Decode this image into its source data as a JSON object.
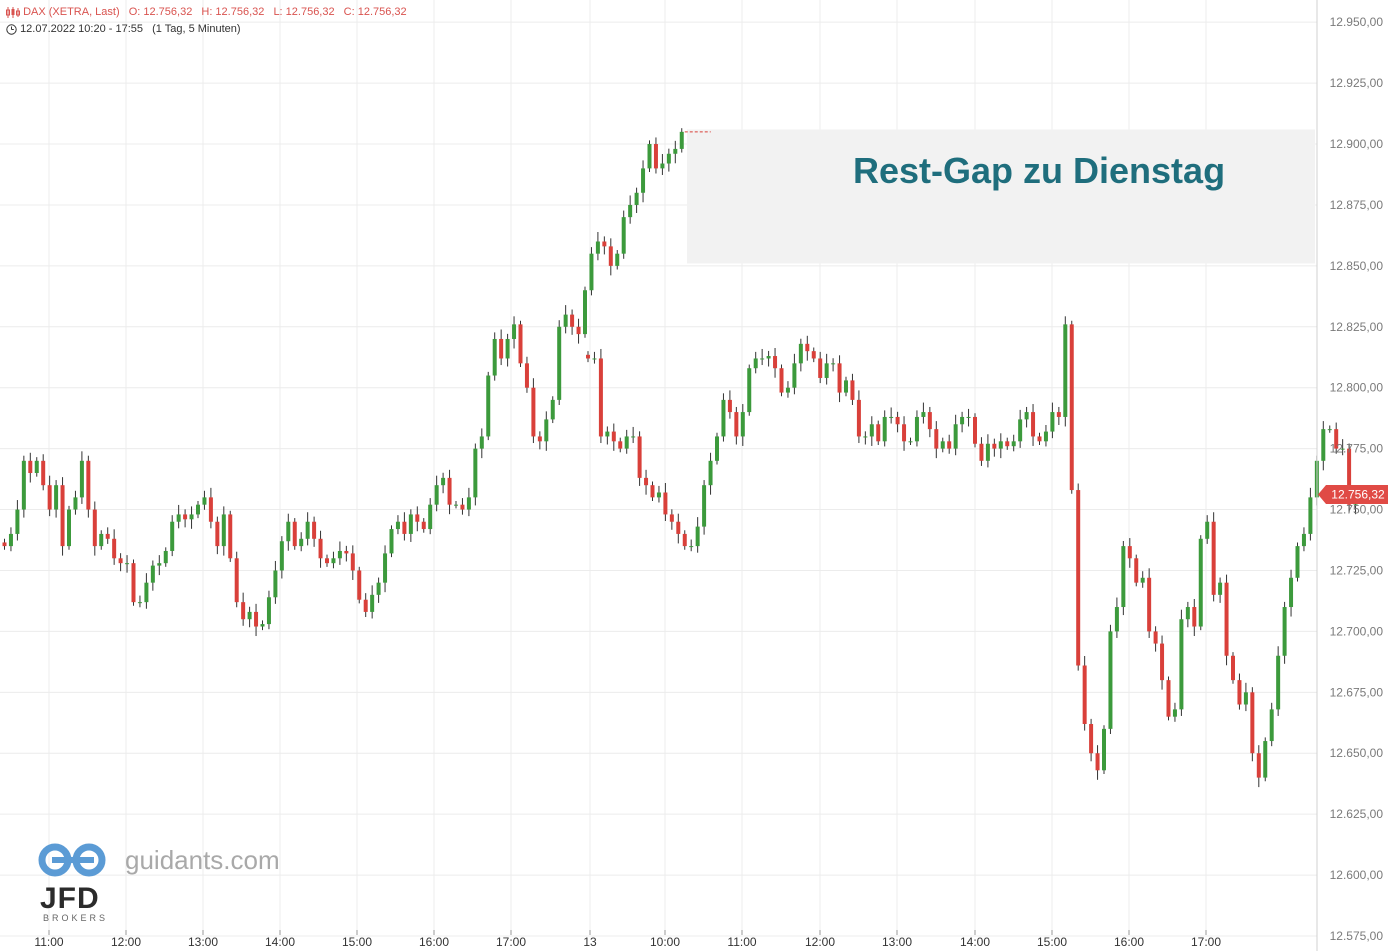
{
  "header": {
    "instrument": "DAX (XETRA, Last)",
    "open": "O: 12.756,32",
    "high": "H: 12.756,32",
    "low": "L: 12.756,32",
    "close": "C: 12.756,32",
    "range": "12.07.2022 10:20 - 17:55",
    "interval": "(1 Tag, 5 Minuten)"
  },
  "annotation": "Rest-Gap zu Dienstag",
  "watermark": {
    "site": "guidants.com",
    "broker": "JFD",
    "broker_sub": "BROKERS"
  },
  "last_price_label": "12.756,32",
  "colors": {
    "up": "#3c9a3c",
    "down": "#d9403a",
    "gap_zone": "#f2f2f2",
    "annotation": "#1f6e7d",
    "grid": "#ececec"
  },
  "chart_data": {
    "type": "candlestick",
    "ylim": [
      12575,
      12955
    ],
    "yticks": [
      {
        "v": 12950,
        "label": "12.950,00"
      },
      {
        "v": 12925,
        "label": "12.925,00"
      },
      {
        "v": 12900,
        "label": "12.900,00"
      },
      {
        "v": 12875,
        "label": "12.875,00"
      },
      {
        "v": 12850,
        "label": "12.850,00"
      },
      {
        "v": 12825,
        "label": "12.825,00"
      },
      {
        "v": 12800,
        "label": "12.800,00"
      },
      {
        "v": 12775,
        "label": "12.775,00"
      },
      {
        "v": 12750,
        "label": "12.750,00"
      },
      {
        "v": 12725,
        "label": "12.725,00"
      },
      {
        "v": 12700,
        "label": "12.700,00"
      },
      {
        "v": 12675,
        "label": "12.675,00"
      },
      {
        "v": 12650,
        "label": "12.650,00"
      },
      {
        "v": 12625,
        "label": "12.625,00"
      },
      {
        "v": 12600,
        "label": "12.600,00"
      },
      {
        "v": 12575,
        "label": "12.575,00"
      }
    ],
    "xticks": [
      "11:00",
      "12:00",
      "13:00",
      "14:00",
      "15:00",
      "16:00",
      "17:00",
      "13",
      "10:00",
      "11:00",
      "12:00",
      "13:00",
      "14:00",
      "15:00",
      "16:00",
      "17:00"
    ],
    "gap_zone": {
      "from": "17:30",
      "to": "end",
      "low": 12851,
      "high": 12906
    },
    "last_price": 12756.32,
    "days": [
      {
        "label": "12.07.2022",
        "start": "10:20",
        "closes": [
          12735,
          12740,
          12750,
          12770,
          12765,
          12770,
          12760,
          12750,
          12760,
          12735,
          12750,
          12755,
          12770,
          12750,
          12735,
          12740,
          12738,
          12730,
          12728,
          12728,
          12712,
          12712,
          12720,
          12727,
          12728,
          12733,
          12745,
          12748,
          12746,
          12748,
          12752,
          12755,
          12745,
          12735,
          12748,
          12730,
          12712,
          12705,
          12708,
          12702,
          12703,
          12714,
          12725,
          12737,
          12745,
          12735,
          12738,
          12745,
          12738,
          12730,
          12728,
          12730,
          12733,
          12732,
          12725,
          12713,
          12708,
          12715,
          12720,
          12732,
          12742,
          12745,
          12740,
          12748,
          12745,
          12742,
          12752,
          12760,
          12763,
          12752,
          12752,
          12750,
          12755,
          12775,
          12780,
          12805,
          12820,
          12812,
          12820,
          12826,
          12810,
          12800,
          12780,
          12778,
          12787,
          12795,
          12825,
          12830,
          12825,
          12822,
          12840,
          12855,
          12860,
          12858,
          12850,
          12855,
          12870,
          12875,
          12880,
          12890,
          12900,
          12890,
          12892,
          12896,
          12898,
          12905
        ]
      },
      {
        "label": "13",
        "start": "08:00",
        "closes": [
          12812,
          12812,
          12780,
          12782,
          12778,
          12775,
          12780,
          12780,
          12763,
          12760,
          12755,
          12757,
          12748,
          12745,
          12740,
          12735,
          12735,
          12743,
          12760,
          12770,
          12780,
          12795,
          12790,
          12780,
          12790,
          12808,
          12812,
          12812,
          12813,
          12808,
          12798,
          12800,
          12810,
          12818,
          12815,
          12812,
          12804,
          12810,
          12810,
          12798,
          12803,
          12795,
          12780,
          12780,
          12785,
          12778,
          12788,
          12788,
          12785,
          12778,
          12778,
          12788,
          12790,
          12783,
          12775,
          12778,
          12775,
          12785,
          12788,
          12788,
          12777,
          12770,
          12777,
          12775,
          12778,
          12776,
          12778,
          12787,
          12790,
          12780,
          12778,
          12782,
          12790,
          12788,
          12826,
          12758,
          12686,
          12662,
          12650,
          12643,
          12660,
          12700,
          12710,
          12735,
          12730,
          12720,
          12722,
          12700,
          12695,
          12680,
          12665,
          12668,
          12705,
          12710,
          12702,
          12738,
          12745,
          12715,
          12720,
          12690,
          12680,
          12670,
          12675,
          12650,
          12640,
          12655,
          12668,
          12690,
          12710,
          12722,
          12735,
          12740,
          12755,
          12770,
          12783,
          12783,
          12775,
          12775,
          12752,
          12756
        ]
      }
    ]
  }
}
